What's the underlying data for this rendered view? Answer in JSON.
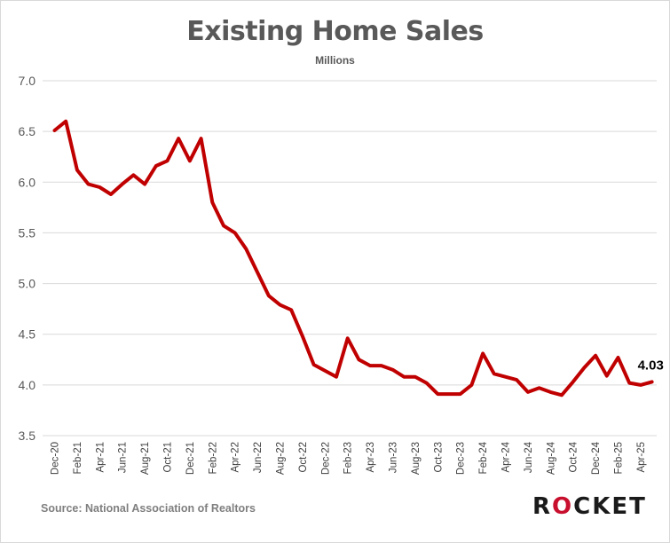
{
  "chart_data": {
    "type": "line",
    "title": "Existing Home Sales",
    "subtitle": "Millions",
    "ylim": [
      3.5,
      7.0
    ],
    "yticks": [
      "3.5",
      "4.0",
      "4.5",
      "5.0",
      "5.5",
      "6.0",
      "6.5",
      "7.0"
    ],
    "x_tick_labels": [
      "Dec-20",
      "Feb-21",
      "Apr-21",
      "Jun-21",
      "Aug-21",
      "Oct-21",
      "Dec-21",
      "Feb-22",
      "Apr-22",
      "Jun-22",
      "Aug-22",
      "Oct-22",
      "Dec-22",
      "Feb-23",
      "Apr-23",
      "Jun-23",
      "Aug-23",
      "Oct-23",
      "Dec-23",
      "Feb-24",
      "Apr-24",
      "Jun-24",
      "Aug-24",
      "Oct-24",
      "Dec-24",
      "Feb-25",
      "Apr-25"
    ],
    "x": [
      "Dec-20",
      "Jan-21",
      "Feb-21",
      "Mar-21",
      "Apr-21",
      "May-21",
      "Jun-21",
      "Jul-21",
      "Aug-21",
      "Sep-21",
      "Oct-21",
      "Nov-21",
      "Dec-21",
      "Jan-22",
      "Feb-22",
      "Mar-22",
      "Apr-22",
      "May-22",
      "Jun-22",
      "Jul-22",
      "Aug-22",
      "Sep-22",
      "Oct-22",
      "Nov-22",
      "Dec-22",
      "Jan-23",
      "Feb-23",
      "Mar-23",
      "Apr-23",
      "May-23",
      "Jun-23",
      "Jul-23",
      "Aug-23",
      "Sep-23",
      "Oct-23",
      "Nov-23",
      "Dec-23",
      "Jan-24",
      "Feb-24",
      "Mar-24",
      "Apr-24",
      "May-24",
      "Jun-24",
      "Jul-24",
      "Aug-24",
      "Sep-24",
      "Oct-24",
      "Nov-24",
      "Dec-24",
      "Jan-25",
      "Feb-25",
      "Mar-25",
      "Apr-25",
      "May-25"
    ],
    "series": [
      {
        "values": [
          6.51,
          6.6,
          6.12,
          5.98,
          5.95,
          5.88,
          5.98,
          6.07,
          5.98,
          6.16,
          6.21,
          6.43,
          6.21,
          6.43,
          5.8,
          5.57,
          5.5,
          5.34,
          5.11,
          4.88,
          4.79,
          4.74,
          4.48,
          4.2,
          4.14,
          4.08,
          4.46,
          4.25,
          4.19,
          4.19,
          4.15,
          4.08,
          4.08,
          4.02,
          3.91,
          3.91,
          3.91,
          4.0,
          4.31,
          4.11,
          4.08,
          4.05,
          3.93,
          3.97,
          3.93,
          3.9,
          4.03,
          4.17,
          4.29,
          4.09,
          4.27,
          4.02,
          4.0,
          4.03
        ],
        "color": "#c00000"
      }
    ],
    "annotation": "4.03",
    "grid": true
  },
  "source": "Source: National Association of Realtors",
  "logo": {
    "left": "R",
    "o": "O",
    "right": "CKET"
  }
}
